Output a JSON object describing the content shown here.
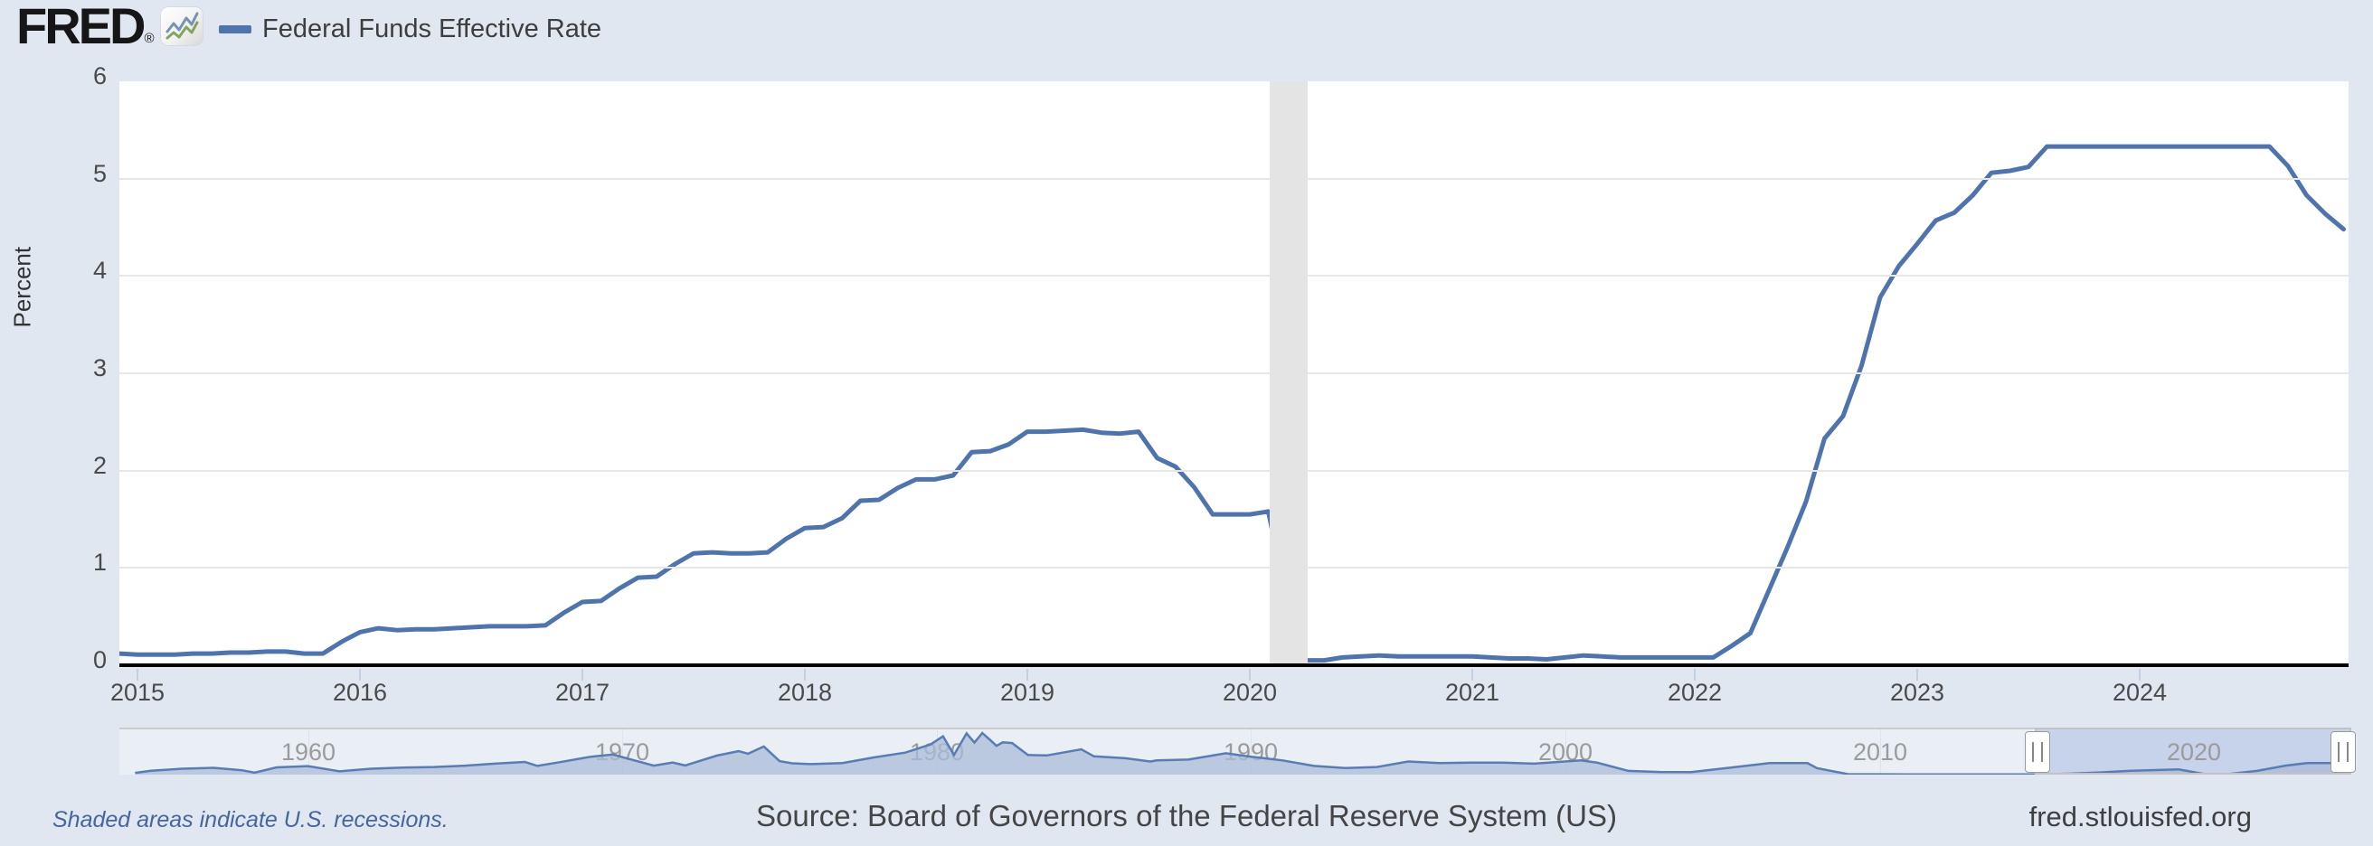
{
  "brand": {
    "logo_text": "FRED",
    "registered_mark": "®",
    "logo_icon": "line-chart-icon"
  },
  "legend": {
    "series_label": "Federal Funds Effective Rate",
    "swatch_color": "#4f74ad"
  },
  "colors": {
    "page_bg": "#e1e7f0",
    "plot_bg": "#ffffff",
    "line": "#4f74ad",
    "gridline": "#e7e7e7",
    "recession_band": "#e4e4e4",
    "axis": "#000000",
    "nav_area_fill": "#a9bbd8",
    "nav_line": "#5a7cb4",
    "nav_selection": "#c7d3ea",
    "footer_link": "#44669d"
  },
  "y_axis": {
    "title": "Percent",
    "tick_labels": [
      "6",
      "5",
      "4",
      "3",
      "2",
      "1",
      "0"
    ]
  },
  "x_axis": {
    "tick_labels": [
      "2015",
      "2016",
      "2017",
      "2018",
      "2019",
      "2020",
      "2021",
      "2022",
      "2023",
      "2024"
    ]
  },
  "navigator": {
    "decade_labels": [
      "1960",
      "1970",
      "1980",
      "1990",
      "2000",
      "2010",
      "2020"
    ]
  },
  "chart_data": {
    "type": "line",
    "title": "Federal Funds Effective Rate",
    "ylabel": "Percent",
    "ylim": [
      0,
      6
    ],
    "xlim_years": [
      2014.917,
      2024.94
    ],
    "grid": "horizontal-only",
    "legend_position": "top-left",
    "y_ticks": [
      0,
      1,
      2,
      3,
      4,
      5,
      6
    ],
    "x_ticks": [
      2015,
      2016,
      2017,
      2018,
      2019,
      2020,
      2021,
      2022,
      2023,
      2024
    ],
    "recession_bands": [
      {
        "start": 2020.09,
        "end": 2020.26
      }
    ],
    "series": [
      {
        "name": "Federal Funds Effective Rate",
        "color": "#4f74ad",
        "frequency": "monthly",
        "start_year": 2014,
        "start_month": 12,
        "monthly_values": [
          0.12,
          0.11,
          0.11,
          0.11,
          0.12,
          0.12,
          0.13,
          0.13,
          0.14,
          0.14,
          0.12,
          0.12,
          0.24,
          0.34,
          0.38,
          0.36,
          0.37,
          0.37,
          0.38,
          0.39,
          0.4,
          0.4,
          0.4,
          0.41,
          0.54,
          0.65,
          0.66,
          0.79,
          0.9,
          0.91,
          1.04,
          1.15,
          1.16,
          1.15,
          1.15,
          1.16,
          1.3,
          1.41,
          1.42,
          1.51,
          1.69,
          1.7,
          1.82,
          1.91,
          1.91,
          1.95,
          2.19,
          2.2,
          2.27,
          2.4,
          2.4,
          2.41,
          2.42,
          2.39,
          2.38,
          2.4,
          2.13,
          2.04,
          1.83,
          1.55,
          1.55,
          1.55,
          1.58,
          0.65,
          0.05,
          0.05,
          0.08,
          0.09,
          0.1,
          0.09,
          0.09,
          0.09,
          0.09,
          0.09,
          0.08,
          0.07,
          0.07,
          0.06,
          0.08,
          0.1,
          0.09,
          0.08,
          0.08,
          0.08,
          0.08,
          0.08,
          0.08,
          0.2,
          0.33,
          0.77,
          1.21,
          1.68,
          2.33,
          2.56,
          3.08,
          3.78,
          4.1,
          4.33,
          4.57,
          4.65,
          4.83,
          5.06,
          5.08,
          5.12,
          5.33,
          5.33,
          5.33,
          5.33,
          5.33,
          5.33,
          5.33,
          5.33,
          5.33,
          5.33,
          5.33,
          5.33,
          5.33,
          5.13,
          4.83,
          4.64,
          4.48
        ]
      }
    ],
    "overview": {
      "type": "area",
      "xlim_years": [
        1954,
        2024.94
      ],
      "ylim": [
        0,
        19.5
      ],
      "selection_years": [
        2015,
        2024.94
      ],
      "decade_ticks": [
        1960,
        1970,
        1980,
        1990,
        2000,
        2010,
        2020
      ],
      "points": [
        [
          1954.5,
          0.8
        ],
        [
          1955,
          1.8
        ],
        [
          1956,
          2.7
        ],
        [
          1957,
          3.1
        ],
        [
          1957.9,
          2.0
        ],
        [
          1958.3,
          0.9
        ],
        [
          1959,
          3.3
        ],
        [
          1960,
          3.9
        ],
        [
          1960.8,
          2.0
        ],
        [
          1961,
          1.5
        ],
        [
          1962,
          2.7
        ],
        [
          1963,
          3.2
        ],
        [
          1964,
          3.5
        ],
        [
          1965,
          4.1
        ],
        [
          1966,
          5.1
        ],
        [
          1966.9,
          5.8
        ],
        [
          1967.3,
          4.0
        ],
        [
          1968,
          5.7
        ],
        [
          1969,
          8.2
        ],
        [
          1969.7,
          9.2
        ],
        [
          1970,
          8.0
        ],
        [
          1971,
          4.1
        ],
        [
          1971.6,
          5.5
        ],
        [
          1972,
          4.2
        ],
        [
          1973,
          8.7
        ],
        [
          1973.7,
          10.8
        ],
        [
          1974,
          9.6
        ],
        [
          1974.5,
          12.9
        ],
        [
          1975,
          6.2
        ],
        [
          1975.4,
          5.2
        ],
        [
          1976,
          4.8
        ],
        [
          1977,
          5.3
        ],
        [
          1978,
          7.9
        ],
        [
          1979,
          10.1
        ],
        [
          1979.8,
          13.8
        ],
        [
          1980.2,
          17.6
        ],
        [
          1980.55,
          9.0
        ],
        [
          1980.95,
          18.9
        ],
        [
          1981.2,
          14.7
        ],
        [
          1981.45,
          19.1
        ],
        [
          1981.7,
          15.9
        ],
        [
          1981.9,
          13.2
        ],
        [
          1982.1,
          14.8
        ],
        [
          1982.4,
          14.5
        ],
        [
          1982.9,
          9.0
        ],
        [
          1983.5,
          8.8
        ],
        [
          1984.6,
          11.6
        ],
        [
          1985,
          8.4
        ],
        [
          1986,
          7.5
        ],
        [
          1986.8,
          6.0
        ],
        [
          1987,
          6.5
        ],
        [
          1988,
          6.9
        ],
        [
          1989.2,
          9.8
        ],
        [
          1990,
          8.2
        ],
        [
          1991,
          6.5
        ],
        [
          1992,
          4.0
        ],
        [
          1993,
          3.0
        ],
        [
          1994,
          3.5
        ],
        [
          1995,
          6.0
        ],
        [
          1996,
          5.3
        ],
        [
          1997,
          5.5
        ],
        [
          1998,
          5.5
        ],
        [
          1999,
          5.0
        ],
        [
          2000.5,
          6.5
        ],
        [
          2001,
          5.5
        ],
        [
          2002,
          1.7
        ],
        [
          2003,
          1.2
        ],
        [
          2004,
          1.1
        ],
        [
          2005,
          2.8
        ],
        [
          2006.5,
          5.25
        ],
        [
          2007.7,
          5.25
        ],
        [
          2008,
          3.0
        ],
        [
          2009,
          0.16
        ],
        [
          2010,
          0.18
        ],
        [
          2011,
          0.1
        ],
        [
          2012,
          0.14
        ],
        [
          2013,
          0.11
        ],
        [
          2014,
          0.09
        ],
        [
          2015,
          0.13
        ],
        [
          2016,
          0.4
        ],
        [
          2017,
          1.0
        ],
        [
          2018,
          1.8
        ],
        [
          2019.5,
          2.4
        ],
        [
          2020.2,
          0.6
        ],
        [
          2020.4,
          0.07
        ],
        [
          2021,
          0.08
        ],
        [
          2022,
          1.7
        ],
        [
          2022.9,
          4.1
        ],
        [
          2023.6,
          5.33
        ],
        [
          2024.6,
          5.33
        ],
        [
          2024.92,
          4.48
        ]
      ]
    }
  },
  "footer": {
    "recession_note": "Shaded areas indicate U.S. recessions.",
    "source": "Source: Board of Governors of the Federal Reserve System (US)",
    "site": "fred.stlouisfed.org"
  }
}
